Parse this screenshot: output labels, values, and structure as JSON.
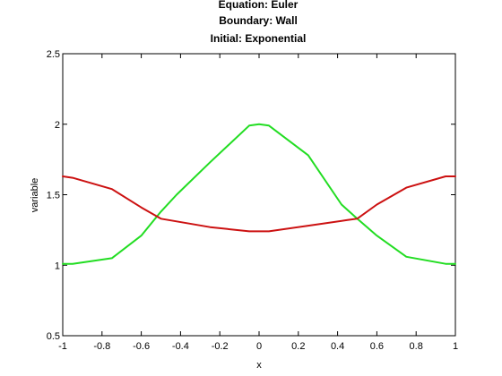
{
  "chart_data": {
    "type": "line",
    "title": [
      "Equation: Euler",
      "Boundary: Wall",
      "Initial: Exponential"
    ],
    "xlabel": "x",
    "ylabel": "variable",
    "xlim": [
      -1,
      1
    ],
    "ylim": [
      0.5,
      2.5
    ],
    "xticks": [
      -1,
      -0.8,
      -0.6,
      -0.4,
      -0.2,
      0,
      0.2,
      0.4,
      0.6,
      0.8,
      1
    ],
    "xtick_labels": [
      "-1",
      "-0.8",
      "-0.6",
      "-0.4",
      "-0.2",
      "0",
      "0.2",
      "0.4",
      "0.6",
      "0.8",
      "1"
    ],
    "yticks": [
      0.5,
      1,
      1.5,
      2,
      2.5
    ],
    "ytick_labels": [
      "0.5",
      "1",
      "1.5",
      "2",
      "2.5"
    ],
    "grid": false,
    "series": [
      {
        "color": "#22dd22",
        "x": [
          -1,
          -0.95,
          -0.75,
          -0.6,
          -0.5,
          -0.42,
          -0.25,
          -0.05,
          0,
          0.05,
          0.25,
          0.42,
          0.5,
          0.6,
          0.75,
          0.95,
          1
        ],
        "y": [
          1.01,
          1.01,
          1.05,
          1.21,
          1.38,
          1.5,
          1.73,
          1.99,
          2.0,
          1.99,
          1.78,
          1.43,
          1.33,
          1.21,
          1.06,
          1.01,
          1.01
        ]
      },
      {
        "color": "#cc1111",
        "x": [
          -1,
          -0.95,
          -0.75,
          -0.6,
          -0.5,
          -0.25,
          -0.05,
          0,
          0.05,
          0.25,
          0.45,
          0.5,
          0.6,
          0.75,
          0.95,
          1
        ],
        "y": [
          1.63,
          1.62,
          1.54,
          1.41,
          1.33,
          1.27,
          1.24,
          1.24,
          1.24,
          1.28,
          1.32,
          1.33,
          1.43,
          1.55,
          1.63,
          1.63
        ]
      }
    ]
  }
}
